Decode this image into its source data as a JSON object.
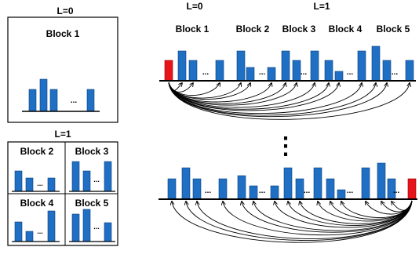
{
  "colors": {
    "bar": "#1f6fc4",
    "highlight": "#e8141b",
    "line": "#000000",
    "background": "#ffffff"
  },
  "left_panel": {
    "level0_label": "L=0",
    "level1_label": "L=1",
    "block1_title": "Block 1",
    "block2_title": "Block 2",
    "block3_title": "Block 3",
    "block4_title": "Block 4",
    "block5_title": "Block 5",
    "ellipsis": "..."
  },
  "right_panel": {
    "level0_label": "L=0",
    "level1_label": "L=1",
    "block_titles": [
      "Block 1",
      "Block 2",
      "Block 3",
      "Block 4",
      "Block 5"
    ],
    "ellipsis": "...",
    "vertical_ellipsis": "⋮"
  }
}
